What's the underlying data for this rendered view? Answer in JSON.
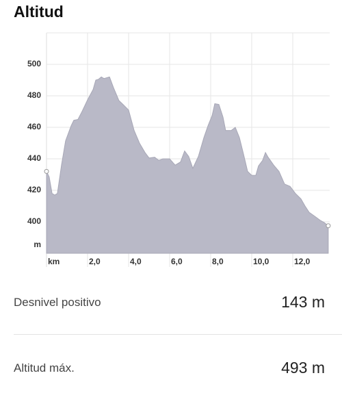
{
  "title": "Altitud",
  "chart_data": {
    "type": "area",
    "y_unit": "m",
    "x_unit": "km",
    "x": [
      0,
      0.13,
      0.27,
      0.4,
      0.53,
      0.73,
      0.93,
      1.2,
      1.33,
      1.53,
      1.73,
      2.0,
      2.27,
      2.4,
      2.53,
      2.67,
      2.8,
      3.07,
      3.27,
      3.53,
      3.73,
      4.0,
      4.27,
      4.53,
      4.8,
      5.0,
      5.27,
      5.47,
      5.67,
      6.0,
      6.27,
      6.53,
      6.73,
      6.93,
      7.13,
      7.4,
      7.67,
      7.87,
      8.07,
      8.2,
      8.4,
      8.6,
      8.73,
      9.0,
      9.2,
      9.4,
      9.6,
      9.8,
      10.0,
      10.2,
      10.33,
      10.53,
      10.67,
      10.8,
      11.07,
      11.33,
      11.6,
      11.87,
      12.13,
      12.4,
      12.6,
      12.8,
      13.07,
      13.33,
      13.53,
      13.73
    ],
    "values": [
      432,
      428.5,
      418,
      417,
      418,
      436,
      451.5,
      461,
      464.5,
      465,
      470,
      477.5,
      484,
      490,
      490.5,
      492,
      491,
      492,
      485,
      477,
      474.5,
      471,
      458,
      450,
      444,
      440.5,
      441,
      439,
      440,
      440,
      436,
      438,
      445,
      441.5,
      434,
      441.5,
      453.5,
      461,
      467.5,
      475,
      474.5,
      466.5,
      458,
      458,
      460,
      453.5,
      443,
      432,
      429.5,
      429.5,
      435.5,
      439,
      444,
      441,
      436,
      432,
      424,
      422.5,
      418,
      414.5,
      410,
      406,
      403.5,
      401,
      399.5,
      397.5
    ],
    "color": "#b9b9c7",
    "ylim": [
      380,
      520
    ],
    "yticks": [
      400,
      420,
      440,
      460,
      480,
      500
    ],
    "xlim": [
      0,
      13.8
    ],
    "xticks": [
      {
        "value": 2,
        "label": "2,0"
      },
      {
        "value": 4,
        "label": "4,0"
      },
      {
        "value": 6,
        "label": "6,0"
      },
      {
        "value": 8,
        "label": "8,0"
      },
      {
        "value": 10,
        "label": "10,0"
      },
      {
        "value": 12,
        "label": "12,0"
      }
    ],
    "grid": true
  },
  "stats": [
    {
      "label": "Desnivel positivo",
      "value": "143 m"
    },
    {
      "label": "Altitud máx.",
      "value": "493 m"
    }
  ]
}
